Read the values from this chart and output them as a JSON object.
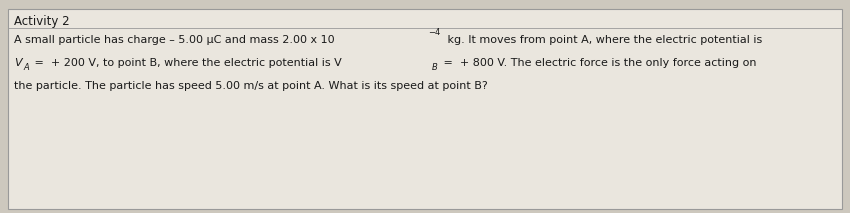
{
  "title": "Activity 2",
  "line1_part1": "A small particle has charge – 5.00 μC and mass 2.00 x 10",
  "line1_sup": "−4",
  "line1_part2": " kg. It moves from point A, where the electric potential is",
  "line2_part1": "V",
  "line2_sub1": "A",
  "line2_part2": " =  + 200 V, to point B, where the electric potential is V",
  "line2_sub2": "B",
  "line2_part3": " =  + 800 V. The electric force is the only force acting on",
  "line3": "the particle. The particle has speed 5.00 m/s at point A. What is its speed at point B?",
  "bg_color": "#cdc8be",
  "box_color": "#eae6de",
  "border_color": "#999999",
  "text_color": "#1a1a1a",
  "title_fontsize": 8.5,
  "body_fontsize": 8.0,
  "sub_fontsize": 6.0
}
